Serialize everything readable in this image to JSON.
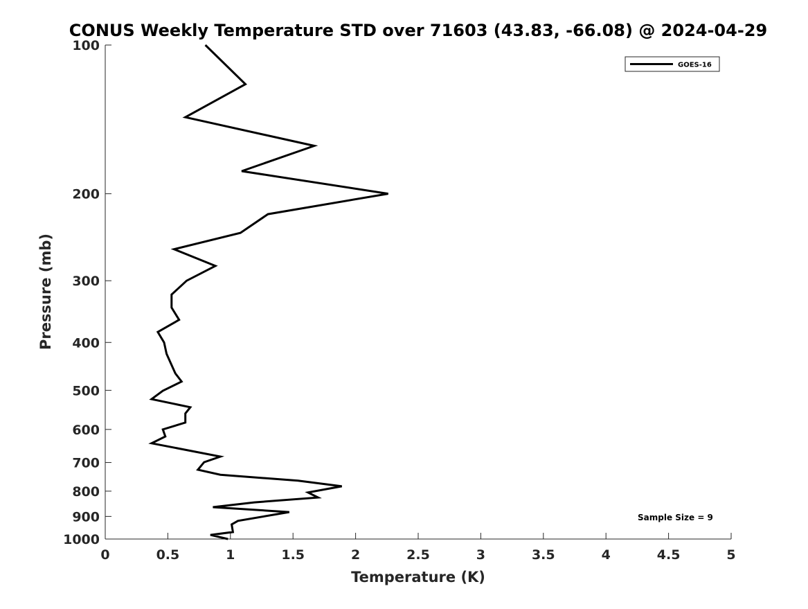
{
  "chart_data": {
    "type": "line",
    "title": "CONUS Weekly Temperature STD over 71603 (43.83, -66.08) @ 2024-04-29",
    "xlabel": "Temperature (K)",
    "ylabel": "Pressure (mb)",
    "xlim": [
      0,
      5
    ],
    "ylim": [
      100,
      1000
    ],
    "yscale": "log",
    "yreversed": true,
    "xticks": [
      "0",
      "0.5",
      "1",
      "1.5",
      "2",
      "2.5",
      "3",
      "3.5",
      "4",
      "4.5",
      "5"
    ],
    "yticks": [
      "100",
      "200",
      "300",
      "400",
      "500",
      "600",
      "700",
      "800",
      "900",
      "1000"
    ],
    "grid": false,
    "legend": {
      "position": "top-right",
      "entries": [
        "GOES-16"
      ]
    },
    "annotation": "Sample Size = 9",
    "series": [
      {
        "name": "GOES-16",
        "color": "#000000",
        "points": [
          [
            0.8,
            100
          ],
          [
            1.12,
            120
          ],
          [
            0.64,
            140
          ],
          [
            1.67,
            160
          ],
          [
            1.09,
            180
          ],
          [
            2.26,
            200
          ],
          [
            1.3,
            220
          ],
          [
            1.08,
            240
          ],
          [
            0.55,
            259
          ],
          [
            0.88,
            280
          ],
          [
            0.65,
            300
          ],
          [
            0.53,
            320
          ],
          [
            0.53,
            340
          ],
          [
            0.59,
            360
          ],
          [
            0.42,
            381
          ],
          [
            0.47,
            400
          ],
          [
            0.49,
            422
          ],
          [
            0.56,
            462
          ],
          [
            0.61,
            480
          ],
          [
            0.46,
            501
          ],
          [
            0.37,
            521
          ],
          [
            0.68,
            541
          ],
          [
            0.64,
            557
          ],
          [
            0.64,
            581
          ],
          [
            0.46,
            600
          ],
          [
            0.48,
            620
          ],
          [
            0.37,
            640
          ],
          [
            0.92,
            681
          ],
          [
            0.79,
            699
          ],
          [
            0.74,
            724
          ],
          [
            0.92,
            741
          ],
          [
            1.54,
            762
          ],
          [
            1.89,
            782
          ],
          [
            1.62,
            805
          ],
          [
            1.7,
            824
          ],
          [
            1.19,
            843
          ],
          [
            0.86,
            862
          ],
          [
            1.47,
            882
          ],
          [
            1.06,
            919
          ],
          [
            1.01,
            934
          ],
          [
            1.02,
            968
          ],
          [
            0.84,
            981
          ],
          [
            0.98,
            1000
          ]
        ]
      }
    ]
  }
}
